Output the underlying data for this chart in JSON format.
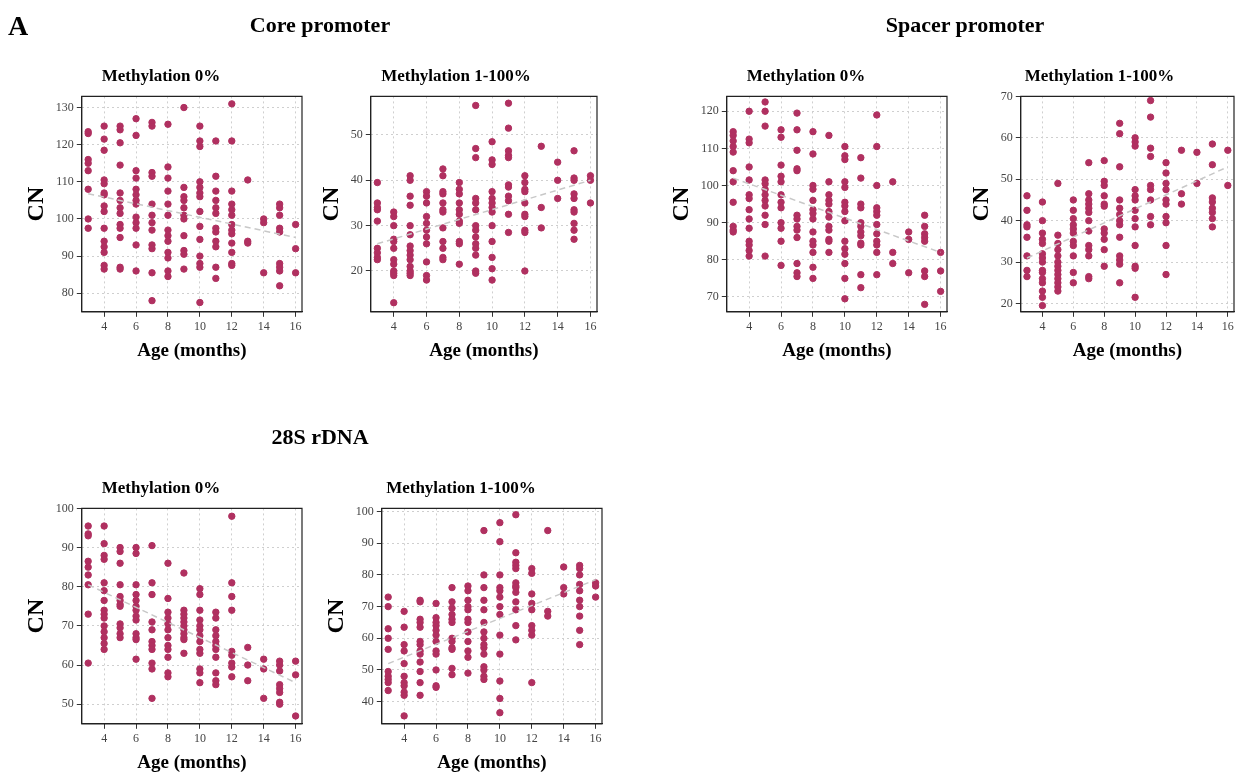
{
  "chart_data": [
    {
      "type": "scatter",
      "title": "Methylation 0%",
      "xlabel": "Age (months)",
      "ylabel": "CN",
      "annotations": [
        "A",
        "Core promoter"
      ],
      "xlim": [
        2.6,
        16.4
      ],
      "xticks": [
        4,
        6,
        8,
        10,
        12,
        14,
        16
      ],
      "ylim": [
        75,
        133
      ],
      "yticks": [
        80,
        90,
        100,
        110,
        120,
        130
      ],
      "grid": true,
      "marker": "circle",
      "series": [
        {
          "color": "#b03060",
          "x": [
            3,
            3,
            3,
            3,
            3,
            3,
            3,
            3,
            4,
            4,
            4,
            4,
            4,
            4,
            4,
            4,
            4,
            4,
            4,
            4,
            4,
            4,
            4,
            5,
            5,
            5,
            5,
            5,
            5,
            5,
            5,
            5,
            5,
            5,
            5,
            5,
            6,
            6,
            6,
            6,
            6,
            6,
            6,
            6,
            6,
            6,
            6,
            6,
            6,
            7,
            7,
            7,
            7,
            7,
            7,
            7,
            7,
            7,
            7,
            7,
            7,
            8,
            8,
            8,
            8,
            8,
            8,
            8,
            8,
            8,
            8,
            8,
            8,
            8,
            9,
            9,
            9,
            9,
            9,
            9,
            9,
            9,
            9,
            9,
            9,
            10,
            10,
            10,
            10,
            10,
            10,
            10,
            10,
            10,
            10,
            10,
            10,
            10,
            10,
            11,
            11,
            11,
            11,
            11,
            11,
            11,
            11,
            11,
            11,
            11,
            11,
            12,
            12,
            12,
            12,
            12,
            12,
            12,
            12,
            12,
            12,
            12,
            12,
            12,
            13,
            13,
            13,
            14,
            14,
            14,
            15,
            15,
            15,
            15,
            15,
            15,
            15,
            15,
            15,
            16,
            16,
            16
          ],
          "values": [
            123.5,
            123,
            116,
            115,
            113,
            108,
            100,
            97.5,
            125,
            121.5,
            118.5,
            110.5,
            109.5,
            107,
            106.5,
            103.5,
            102,
            97.5,
            94,
            92.5,
            91,
            87.5,
            86.5,
            125,
            124,
            120.5,
            114.5,
            107,
            105,
            103,
            101.5,
            98.5,
            97.5,
            95,
            87,
            86.5,
            127,
            122.5,
            113,
            111,
            108,
            106.5,
            105,
            104,
            100.5,
            99,
            97.5,
            93,
            86,
            126,
            125,
            112.5,
            111.5,
            104,
            101,
            99,
            97,
            93,
            92,
            85.5,
            78,
            125.5,
            114,
            111,
            107.5,
            104,
            101,
            97,
            95.5,
            94,
            91,
            89.5,
            86,
            84.5,
            130,
            108.5,
            106,
            105,
            103,
            101,
            100,
            95.5,
            91.5,
            90.5,
            86.5,
            125,
            121,
            119.5,
            110,
            108.5,
            107,
            106,
            102,
            98,
            94.5,
            90,
            88,
            87,
            77.5,
            121,
            111.5,
            107.5,
            105,
            103,
            101.5,
            97.5,
            96.5,
            94,
            92.5,
            87,
            84,
            131,
            121,
            107.5,
            104,
            102.5,
            101,
            98.5,
            97,
            96,
            93.5,
            91,
            88,
            87.5,
            110.5,
            94,
            93.5,
            100,
            99,
            85.5,
            104,
            103,
            101,
            97.5,
            96.5,
            88,
            87,
            86,
            82,
            98.5,
            92,
            85.5
          ]
        },
        {
          "type": "line",
          "color": "#c8c8c8",
          "line_style": "dashed",
          "marker": "none",
          "x": [
            3,
            16
          ],
          "values": [
            106.8,
            95
          ]
        }
      ]
    },
    {
      "type": "scatter",
      "title": "Methylation 1-100%",
      "xlabel": "Age (months)",
      "ylabel": "CN",
      "xlim": [
        2.6,
        16.4
      ],
      "xticks": [
        4,
        6,
        8,
        10,
        12,
        14,
        16
      ],
      "ylim": [
        11,
        58.5
      ],
      "yticks": [
        20,
        30,
        40,
        50
      ],
      "grid": true,
      "marker": "circle",
      "series": [
        {
          "color": "#b03060",
          "x": [
            3,
            3,
            3,
            3,
            3,
            3,
            3,
            3,
            3,
            4,
            4,
            4,
            4,
            4,
            4,
            4,
            4,
            4,
            4,
            4,
            4,
            5,
            5,
            5,
            5,
            5,
            5,
            5,
            5,
            5,
            5,
            5,
            5,
            5,
            5,
            6,
            6,
            6,
            6,
            6,
            6,
            6,
            6,
            6,
            6,
            6,
            7,
            7,
            7,
            7,
            7,
            7,
            7,
            7,
            7,
            7,
            7,
            7,
            8,
            8,
            8,
            8,
            8,
            8,
            8,
            8,
            8,
            8,
            8,
            9,
            9,
            9,
            9,
            9,
            9,
            9,
            9,
            9,
            9,
            9,
            9,
            9,
            9,
            10,
            10,
            10,
            10,
            10,
            10,
            10,
            10,
            10,
            10,
            10,
            10,
            10,
            11,
            11,
            11,
            11,
            11,
            11,
            11,
            11,
            11,
            11,
            11,
            12,
            12,
            12,
            12,
            12,
            12,
            12,
            12,
            12,
            12,
            13,
            13,
            13,
            14,
            14,
            14,
            15,
            15,
            15,
            15,
            15,
            15,
            15,
            15,
            15,
            15,
            16,
            16,
            16
          ],
          "values": [
            39.5,
            35,
            34,
            33.5,
            31,
            25,
            24,
            23,
            22.5,
            33,
            32,
            30,
            27,
            26.5,
            25,
            22.5,
            21.5,
            20,
            19.5,
            19,
            13,
            41,
            40,
            36.5,
            34.5,
            30,
            28,
            25.5,
            24.5,
            23.5,
            22.5,
            21,
            20,
            19.5,
            19,
            37.5,
            36.5,
            35,
            32,
            30.5,
            29,
            27.5,
            26,
            22,
            19,
            18,
            42.5,
            41,
            37.5,
            37,
            35,
            33.5,
            33,
            29.5,
            26.5,
            25,
            23,
            22.5,
            39.5,
            38,
            37,
            35,
            33.5,
            32.5,
            31,
            30.5,
            26.5,
            26,
            21.5,
            56.5,
            47,
            45,
            36,
            35,
            33.5,
            30,
            29,
            27.5,
            26,
            25,
            23.5,
            20,
            19.5,
            48.5,
            44.5,
            43.5,
            37.5,
            36,
            35,
            34,
            33,
            30,
            26.5,
            23,
            20.5,
            18,
            57,
            51.5,
            46.5,
            45.5,
            45,
            39,
            38.5,
            36.5,
            35.5,
            32.5,
            28.5,
            41,
            39.5,
            38,
            37.5,
            35,
            32.5,
            32,
            29,
            28.5,
            20,
            47.5,
            34,
            29.5,
            44,
            40,
            36,
            46.5,
            40.5,
            40,
            37,
            36,
            33.5,
            33,
            30.5,
            29,
            27,
            41,
            40,
            35
          ]
        },
        {
          "type": "line",
          "color": "#c8c8c8",
          "line_style": "dashed",
          "marker": "none",
          "x": [
            3,
            16
          ],
          "values": [
            26,
            40
          ]
        }
      ]
    },
    {
      "type": "scatter",
      "title": "Methylation 0%",
      "xlabel": "Age (months)",
      "ylabel": "CN",
      "annotations": [
        "Spacer promoter"
      ],
      "xlim": [
        2.6,
        16.4
      ],
      "xticks": [
        4,
        6,
        8,
        10,
        12,
        14,
        16
      ],
      "ylim": [
        66,
        124
      ],
      "yticks": [
        70,
        80,
        90,
        100,
        110,
        120
      ],
      "grid": true,
      "marker": "circle",
      "series": [
        {
          "color": "#b03060",
          "x": [
            3,
            3,
            3,
            3,
            3,
            3,
            3,
            3,
            3,
            3,
            3,
            4,
            4,
            4,
            4,
            4,
            4,
            4,
            4,
            4,
            4,
            4,
            4,
            4,
            4,
            5,
            5,
            5,
            5,
            5,
            5,
            5,
            5,
            5,
            5,
            5,
            5,
            6,
            6,
            6,
            6,
            6,
            6,
            6,
            6,
            6,
            6,
            6,
            6,
            7,
            7,
            7,
            7,
            7,
            7,
            7,
            7,
            7,
            7,
            7,
            7,
            7,
            8,
            8,
            8,
            8,
            8,
            8,
            8,
            8,
            8,
            8,
            8,
            8,
            8,
            8,
            9,
            9,
            9,
            9,
            9,
            9,
            9,
            9,
            9,
            9,
            9,
            9,
            10,
            10,
            10,
            10,
            10,
            10,
            10,
            10,
            10,
            10,
            10,
            10,
            10,
            10,
            10,
            11,
            11,
            11,
            11,
            11,
            11,
            11,
            11,
            11,
            11,
            11,
            11,
            12,
            12,
            12,
            12,
            12,
            12,
            12,
            12,
            12,
            12,
            12,
            12,
            13,
            13,
            13,
            14,
            14,
            14,
            15,
            15,
            15,
            15,
            15,
            15,
            15,
            15,
            16,
            16,
            16
          ],
          "values": [
            114.5,
            113.5,
            112,
            110.5,
            109,
            104,
            101,
            95.5,
            89,
            88,
            87.5,
            120,
            112.5,
            111.5,
            105,
            101.5,
            97.5,
            96.5,
            93.5,
            91,
            88.5,
            85,
            84,
            82.5,
            81,
            122.5,
            120,
            116,
            101.5,
            100.5,
            99,
            97.5,
            96,
            94.5,
            92,
            89.5,
            81,
            115,
            113,
            105.5,
            102.5,
            101,
            97.5,
            95.5,
            94,
            90,
            88.5,
            85,
            78.5,
            119.5,
            115,
            109.5,
            104.5,
            104,
            92,
            91,
            89,
            88,
            86,
            79,
            76.5,
            75.5,
            114.5,
            108.5,
            100,
            99,
            96,
            93.5,
            92.5,
            91,
            87.5,
            85,
            84,
            82,
            78,
            75,
            113.5,
            101,
            97.5,
            96,
            95,
            93,
            91.5,
            89,
            88,
            85.5,
            85,
            82,
            110.5,
            108,
            107,
            101,
            99.5,
            95.5,
            94.5,
            93,
            90.5,
            85,
            83,
            81.5,
            79,
            75,
            69.5,
            107.5,
            102,
            95,
            94,
            90,
            89,
            87.5,
            86.5,
            84.5,
            84,
            76,
            72.5,
            119,
            110.5,
            100,
            94,
            93,
            92,
            89.5,
            87,
            85,
            84,
            82,
            76,
            101,
            82,
            79,
            87.5,
            85.5,
            76.5,
            92,
            89,
            87,
            86,
            85,
            77,
            75.5,
            68,
            82,
            77,
            71.5
          ]
        },
        {
          "type": "line",
          "color": "#c8c8c8",
          "line_style": "dashed",
          "marker": "none",
          "x": [
            3,
            16
          ],
          "values": [
            102,
            82
          ]
        }
      ]
    },
    {
      "type": "scatter",
      "title": "Methylation 1-100%",
      "xlabel": "Age (months)",
      "ylabel": "CN",
      "xlim": [
        2.6,
        16.4
      ],
      "xticks": [
        4,
        6,
        8,
        10,
        12,
        14,
        16
      ],
      "ylim": [
        18,
        70
      ],
      "yticks": [
        20,
        30,
        40,
        50,
        60,
        70
      ],
      "grid": true,
      "marker": "circle",
      "series": [
        {
          "color": "#b03060",
          "x": [
            3,
            3,
            3,
            3,
            3,
            3,
            3,
            3,
            4,
            4,
            4,
            4,
            4,
            4,
            4,
            4,
            4,
            4,
            4,
            4,
            4,
            4,
            4,
            5,
            5,
            5,
            5,
            5,
            5,
            5,
            5,
            5,
            5,
            5,
            5,
            5,
            6,
            6,
            6,
            6,
            6,
            6,
            6,
            6,
            6,
            6,
            6,
            7,
            7,
            7,
            7,
            7,
            7,
            7,
            7,
            7,
            7,
            7,
            7,
            7,
            8,
            8,
            8,
            8,
            8,
            8,
            8,
            8,
            8,
            8,
            8,
            9,
            9,
            9,
            9,
            9,
            9,
            9,
            9,
            9,
            9,
            9,
            9,
            9,
            10,
            10,
            10,
            10,
            10,
            10,
            10,
            10,
            10,
            10,
            10,
            10,
            10,
            11,
            11,
            11,
            11,
            11,
            11,
            11,
            11,
            11,
            12,
            12,
            12,
            12,
            12,
            12,
            12,
            12,
            12,
            12,
            13,
            13,
            13,
            14,
            14,
            15,
            15,
            15,
            15,
            15,
            15,
            15,
            15,
            16,
            16
          ],
          "values": [
            46,
            42.5,
            39,
            38.5,
            36,
            31.5,
            28,
            26.5,
            44.5,
            40,
            37,
            35.5,
            34.5,
            32,
            31,
            30,
            28,
            27.5,
            26,
            25,
            23,
            21.5,
            19.5,
            49,
            36.5,
            34.5,
            33,
            31.5,
            30,
            29,
            28,
            27,
            26,
            25,
            24,
            23,
            45,
            42.5,
            40.5,
            39,
            38,
            37,
            35,
            34,
            31.5,
            27.5,
            25,
            54,
            46.5,
            45,
            44,
            43,
            42,
            40,
            37.5,
            34,
            33,
            31.5,
            26.5,
            26,
            54.5,
            49.5,
            48.5,
            46,
            44,
            43.5,
            38,
            37,
            35.5,
            33,
            29,
            63.5,
            61,
            53,
            45,
            43,
            41.5,
            40,
            39,
            36,
            31.5,
            30.5,
            29.5,
            25,
            60,
            59,
            58,
            47.5,
            46,
            45,
            42.5,
            40.5,
            38.5,
            34,
            29,
            28.5,
            21.5,
            69,
            65,
            57.5,
            55.5,
            48.5,
            47.5,
            45,
            41,
            39,
            54,
            51.5,
            49,
            47.5,
            45,
            44,
            41,
            39.5,
            34,
            27,
            57,
            46.5,
            44,
            56.5,
            49,
            58.5,
            53.5,
            45.5,
            44.5,
            43,
            42,
            40.5,
            38.5,
            57,
            48.5
          ]
        },
        {
          "type": "line",
          "color": "#c8c8c8",
          "line_style": "dashed",
          "marker": "none",
          "x": [
            3,
            16
          ],
          "values": [
            31,
            53
          ]
        }
      ]
    },
    {
      "type": "scatter",
      "title": "Methylation 0%",
      "xlabel": "Age (months)",
      "ylabel": "CN",
      "annotations": [
        "28S rDNA"
      ],
      "xlim": [
        2.6,
        16.4
      ],
      "xticks": [
        4,
        6,
        8,
        10,
        12,
        14,
        16
      ],
      "ylim": [
        45,
        100
      ],
      "yticks": [
        50,
        60,
        70,
        80,
        90,
        100
      ],
      "grid": true,
      "marker": "circle",
      "series": [
        {
          "color": "#b03060",
          "x": [
            3,
            3,
            3,
            3,
            3,
            3,
            3,
            3,
            3,
            4,
            4,
            4,
            4,
            4,
            4,
            4,
            4,
            4,
            4,
            4,
            4,
            4,
            4,
            4,
            5,
            5,
            5,
            5,
            5,
            5,
            5,
            5,
            5,
            5,
            5,
            5,
            6,
            6,
            6,
            6,
            6,
            6,
            6,
            6,
            6,
            6,
            6,
            6,
            6,
            7,
            7,
            7,
            7,
            7,
            7,
            7,
            7,
            7,
            7,
            7,
            8,
            8,
            8,
            8,
            8,
            8,
            8,
            8,
            8,
            8,
            8,
            8,
            9,
            9,
            9,
            9,
            9,
            9,
            9,
            9,
            9,
            9,
            9,
            10,
            10,
            10,
            10,
            10,
            10,
            10,
            10,
            10,
            10,
            10,
            10,
            10,
            11,
            11,
            11,
            11,
            11,
            11,
            11,
            11,
            11,
            11,
            11,
            12,
            12,
            12,
            12,
            12,
            12,
            12,
            12,
            12,
            13,
            13,
            13,
            14,
            14,
            14,
            15,
            15,
            15,
            15,
            15,
            15,
            15,
            15,
            16,
            16,
            16
          ],
          "values": [
            95.5,
            93.5,
            93,
            86.5,
            85,
            83,
            80.5,
            73,
            60.5,
            95.5,
            91,
            88,
            87,
            81,
            79,
            76.5,
            74,
            73,
            72,
            70,
            68.5,
            67,
            65.5,
            64,
            90,
            89,
            86,
            80.5,
            77.5,
            76.5,
            75.5,
            75,
            70.5,
            69.5,
            68,
            67,
            90,
            88.5,
            80.5,
            78,
            76.5,
            75,
            74,
            72.5,
            71.5,
            68,
            67,
            66.5,
            61.5,
            90.5,
            81,
            78,
            71,
            69,
            66,
            65,
            64,
            60.5,
            59,
            51.5,
            86,
            77,
            73.5,
            72,
            70.5,
            69,
            67,
            65,
            64,
            62,
            58,
            57,
            83.5,
            74,
            73,
            72,
            71,
            70,
            69,
            68,
            67,
            66.5,
            63,
            79.5,
            78,
            74,
            71.5,
            70,
            69,
            67.5,
            66,
            64,
            63,
            59,
            58,
            55.5,
            73.5,
            72,
            69,
            67.5,
            66,
            65,
            64,
            62,
            58,
            56,
            55,
            98,
            81,
            77.5,
            74,
            63.5,
            62.5,
            60.5,
            59.5,
            57,
            64.5,
            60,
            56,
            61.5,
            59,
            51.5,
            61,
            60,
            58.5,
            55,
            54,
            53,
            50.5,
            50,
            61,
            57.5,
            47
          ]
        },
        {
          "type": "line",
          "color": "#c8c8c8",
          "line_style": "dashed",
          "marker": "none",
          "x": [
            3,
            16
          ],
          "values": [
            80.5,
            55.5
          ]
        }
      ]
    },
    {
      "type": "scatter",
      "title": "Methylation 1-100%",
      "xlabel": "Age (months)",
      "ylabel": "CN",
      "xlim": [
        2.6,
        16.4
      ],
      "xticks": [
        4,
        6,
        8,
        10,
        12,
        14,
        16
      ],
      "ylim": [
        33,
        101
      ],
      "yticks": [
        40,
        50,
        60,
        70,
        80,
        90,
        100
      ],
      "grid": true,
      "marker": "circle",
      "series": [
        {
          "color": "#b03060",
          "x": [
            3,
            3,
            3,
            3,
            3,
            3,
            3,
            3,
            3,
            3,
            4,
            4,
            4,
            4,
            4,
            4,
            4,
            4,
            4,
            4,
            4,
            5,
            5,
            5,
            5,
            5,
            5,
            5,
            5,
            5,
            5,
            5,
            5,
            5,
            6,
            6,
            6,
            6,
            6,
            6,
            6,
            6,
            6,
            6,
            6,
            6,
            7,
            7,
            7,
            7,
            7,
            7,
            7,
            7,
            7,
            7,
            7,
            7,
            8,
            8,
            8,
            8,
            8,
            8,
            8,
            8,
            8,
            8,
            8,
            8,
            9,
            9,
            9,
            9,
            9,
            9,
            9,
            9,
            9,
            9,
            9,
            9,
            9,
            9,
            9,
            10,
            10,
            10,
            10,
            10,
            10,
            10,
            10,
            10,
            10,
            10,
            10,
            10,
            11,
            11,
            11,
            11,
            11,
            11,
            11,
            11,
            11,
            11,
            11,
            11,
            11,
            12,
            12,
            12,
            12,
            12,
            12,
            12,
            12,
            12,
            13,
            13,
            13,
            14,
            14,
            14,
            15,
            15,
            15,
            15,
            15,
            15,
            15,
            15,
            15,
            15,
            16,
            16,
            16
          ],
          "values": [
            73,
            70,
            63,
            60,
            56.5,
            49.5,
            48,
            47,
            46,
            43.5,
            68.5,
            63.5,
            58,
            56,
            52,
            48,
            46,
            45,
            43,
            42,
            35.5,
            72,
            71.5,
            66,
            65,
            63.5,
            59,
            58,
            56,
            55,
            52.5,
            49.5,
            46,
            42,
            71,
            66.5,
            65,
            64,
            62.5,
            61,
            59,
            56,
            55,
            50,
            45,
            44.5,
            76,
            71.5,
            69.5,
            67.5,
            66,
            65,
            60,
            59,
            57,
            56.5,
            50.5,
            48.5,
            76.5,
            75,
            72,
            70,
            69,
            66,
            65,
            62,
            59,
            56,
            54,
            49,
            94,
            80,
            76,
            72,
            69,
            65,
            62,
            60,
            58,
            57,
            55,
            51,
            50,
            48,
            47,
            96.5,
            90.5,
            80,
            76,
            75,
            73,
            70,
            67.5,
            61,
            55,
            46.5,
            41,
            36.5,
            99,
            87,
            84,
            83,
            82,
            77.5,
            76.5,
            76,
            74.5,
            71.5,
            69,
            64,
            59.5,
            82,
            80.5,
            74,
            71,
            69,
            64,
            62.5,
            61,
            46,
            94,
            68.5,
            67,
            82.5,
            76,
            74,
            83,
            82,
            80,
            77,
            75,
            72,
            70,
            67,
            62.5,
            58,
            77.5,
            76.5,
            73
          ]
        },
        {
          "type": "line",
          "color": "#c8c8c8",
          "line_style": "dashed",
          "marker": "none",
          "x": [
            3,
            16
          ],
          "values": [
            52,
            78.5
          ]
        }
      ]
    }
  ]
}
